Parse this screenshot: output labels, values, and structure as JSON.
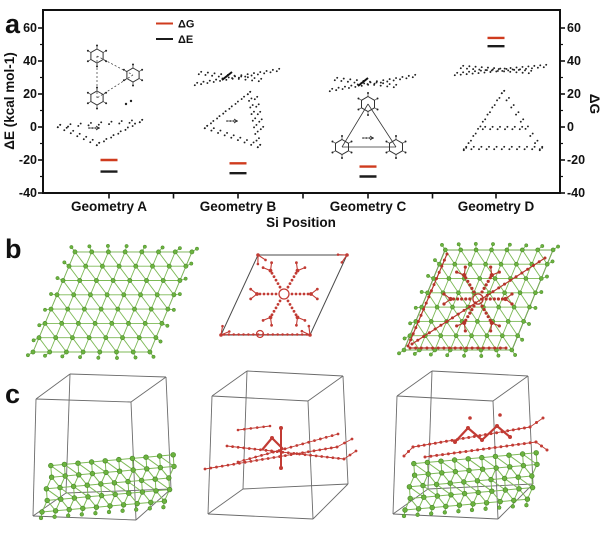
{
  "figure": {
    "panel_a_label": "a",
    "panel_b_label": "b",
    "panel_c_label": "c"
  },
  "chart_data": {
    "type": "scatter",
    "title": "",
    "xlabel": "Si Position",
    "ylabel_left": "ΔE (kcal mol-1)",
    "ylabel_right": "ΔG",
    "categories": [
      "Geometry A",
      "Geometry B",
      "Geometry C",
      "Geometry D"
    ],
    "yticks": [
      60,
      40,
      20,
      0,
      -20,
      -40
    ],
    "ylim": [
      -40,
      60
    ],
    "grid": false,
    "legend_position": "top-left-inside",
    "marker": "horizontal-dash",
    "series": [
      {
        "name": "ΔG",
        "color": "#cf3b1e",
        "values": [
          -20,
          -22,
          -24,
          54
        ]
      },
      {
        "name": "ΔE",
        "color": "#1c1c1c",
        "values": [
          -27,
          -28,
          -30,
          49
        ]
      }
    ]
  },
  "colors": {
    "plot_border": "#111111",
    "green_atom": "#6cb33f",
    "green_atom_edge": "#4a8a2a",
    "green_bond": "#7db956",
    "red_structure": "#c23b34",
    "red_overlay": "#b5342a",
    "cell_outline": "#6b6b6b",
    "parallelogram_outline": "#4a4a4a",
    "background": "#ffffff"
  }
}
